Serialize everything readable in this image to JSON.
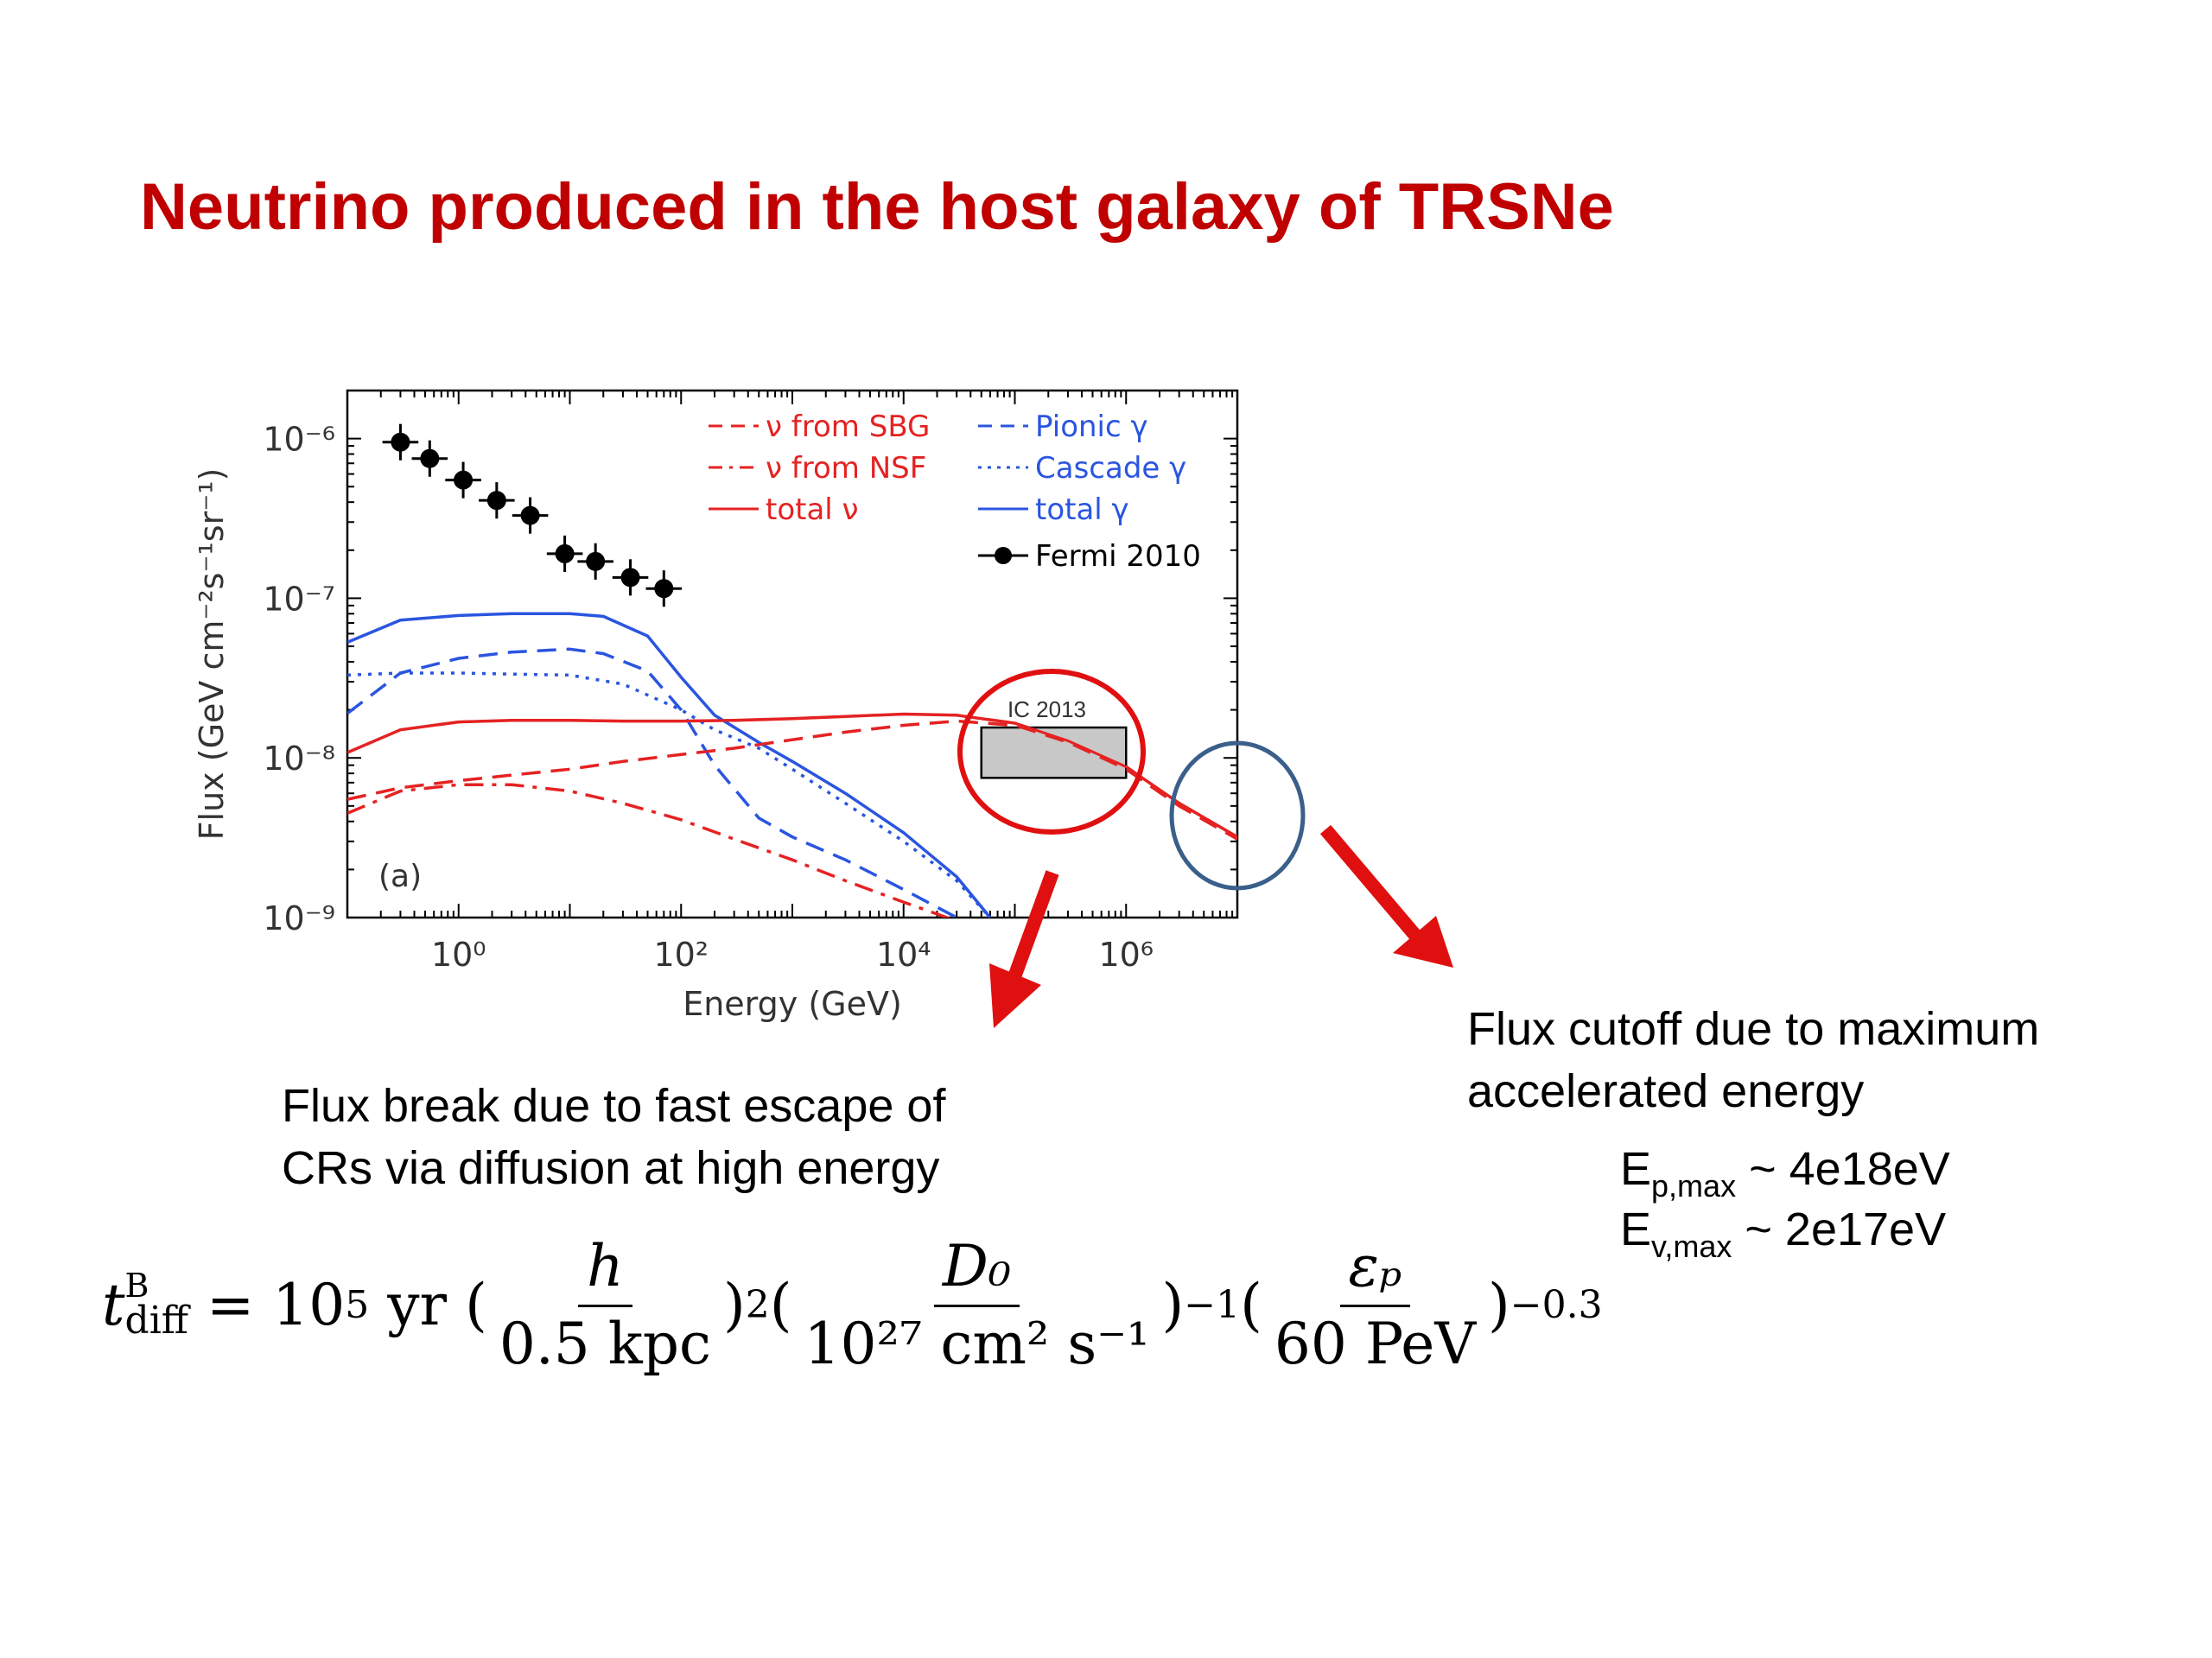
{
  "slide": {
    "title": "Neutrino produced in the host galaxy of TRSNe",
    "annotation_left_line1": "Flux break due to fast escape of",
    "annotation_left_line2": "CRs via diffusion at high energy",
    "annotation_right_line1": "Flux cutoff due to maximum",
    "annotation_right_line2": "accelerated energy",
    "ep_label": "E",
    "ep_sub": "p,max",
    "ep_value": " ~ 4e18eV",
    "ev_label": "E",
    "ev_sub": "v,max",
    "ev_value": " ~ 2e17eV",
    "formula": {
      "lhs_t": "t",
      "lhs_sup": "B",
      "lhs_sub": "diff",
      "equals": " = 10",
      "exp5": "5",
      "yr": " yr (",
      "f1_num": "h",
      "f1_den": "0.5 kpc",
      "close1": ")",
      "pow1": "2",
      "open2": "(",
      "f2_num": "D₀",
      "f2_den": "10²⁷ cm² s⁻¹",
      "close2": ")",
      "pow2": "−1",
      "open3": "(",
      "f3_num": "εₚ",
      "f3_den": "60 PeV",
      "close3": ")",
      "pow3": "−0.3"
    },
    "colors": {
      "title": "#c00000",
      "red": "#e52222",
      "blue": "#2a55e0",
      "circle_red": "#e01010",
      "circle_blue": "#3a5f8a",
      "arrow": "#e01010"
    }
  },
  "chart_data": {
    "type": "line",
    "xlabel": "Energy (GeV)",
    "ylabel": "Flux (GeV cm⁻²s⁻¹sr⁻¹)",
    "xscale": "log",
    "yscale": "log",
    "xlim": [
      0.1,
      10000000
    ],
    "ylim": [
      1e-09,
      2e-06
    ],
    "x_tick_labels": [
      "10⁰",
      "10²",
      "10⁴",
      "10⁶"
    ],
    "x_tick_values": [
      1,
      100,
      10000,
      1000000
    ],
    "y_tick_labels": [
      "10⁻⁹",
      "10⁻⁸",
      "10⁻⁷",
      "10⁻⁶"
    ],
    "y_tick_values": [
      1e-09,
      1e-08,
      1e-07,
      1e-06
    ],
    "panel_label": "(a)",
    "legend_placement": "top-right",
    "series": [
      {
        "name": "ν from SBG",
        "color": "#e52222",
        "dash": "dash",
        "x": [
          0.1,
          0.3,
          1,
          3,
          10,
          30,
          100,
          300,
          1000,
          3000,
          10000,
          30000,
          100000,
          300000,
          1000000,
          3000000,
          10000000
        ],
        "y": [
          5.5e-09,
          6.5e-09,
          7.2e-09,
          7.8e-09,
          8.5e-09,
          9.5e-09,
          1.05e-08,
          1.15e-08,
          1.3e-08,
          1.45e-08,
          1.6e-08,
          1.7e-08,
          1.6e-08,
          1.25e-08,
          8.5e-09,
          5e-09,
          3.1e-09
        ]
      },
      {
        "name": "ν from NSF",
        "color": "#e52222",
        "dash": "dashdot",
        "x": [
          0.1,
          0.3,
          1,
          3,
          10,
          30,
          100,
          300,
          1000,
          3000,
          10000,
          30000
        ],
        "y": [
          4.5e-09,
          6.2e-09,
          6.8e-09,
          6.8e-09,
          6.2e-09,
          5.2e-09,
          4.1e-09,
          3.1e-09,
          2.3e-09,
          1.7e-09,
          1.25e-09,
          9.5e-10
        ]
      },
      {
        "name": "total ν",
        "color": "#e52222",
        "dash": "solid",
        "x": [
          0.1,
          0.3,
          1,
          3,
          10,
          30,
          100,
          300,
          1000,
          3000,
          10000,
          30000,
          100000,
          300000,
          1000000,
          3000000,
          10000000
        ],
        "y": [
          1.08e-08,
          1.5e-08,
          1.68e-08,
          1.72e-08,
          1.72e-08,
          1.7e-08,
          1.7e-08,
          1.72e-08,
          1.76e-08,
          1.82e-08,
          1.88e-08,
          1.85e-08,
          1.65e-08,
          1.28e-08,
          8.8e-09,
          5.2e-09,
          3.2e-09
        ]
      },
      {
        "name": "Pionic γ",
        "color": "#2a55e0",
        "dash": "dash",
        "x": [
          0.1,
          0.3,
          1,
          3,
          10,
          20,
          50,
          100,
          200,
          500,
          1000,
          3000,
          10000,
          30000
        ],
        "y": [
          1.9e-08,
          3.4e-08,
          4.2e-08,
          4.6e-08,
          4.8e-08,
          4.5e-08,
          3.5e-08,
          2e-08,
          9e-09,
          4.2e-09,
          3.2e-09,
          2.3e-09,
          1.5e-09,
          1e-09
        ]
      },
      {
        "name": "Cascade γ",
        "color": "#2a55e0",
        "dash": "dot",
        "x": [
          0.1,
          0.3,
          1,
          3,
          10,
          30,
          100,
          200,
          500,
          1000,
          3000,
          10000,
          30000,
          60000
        ],
        "y": [
          3.3e-08,
          3.4e-08,
          3.4e-08,
          3.35e-08,
          3.3e-08,
          2.9e-08,
          2e-08,
          1.5e-08,
          1.15e-08,
          8.5e-09,
          5.2e-09,
          3e-09,
          1.7e-09,
          1e-09
        ]
      },
      {
        "name": "total γ",
        "color": "#2a55e0",
        "dash": "solid",
        "x": [
          0.1,
          0.3,
          1,
          3,
          10,
          20,
          50,
          100,
          200,
          500,
          1000,
          3000,
          10000,
          30000,
          60000
        ],
        "y": [
          5.3e-08,
          7.3e-08,
          7.8e-08,
          8e-08,
          8e-08,
          7.7e-08,
          5.8e-08,
          3.2e-08,
          1.85e-08,
          1.25e-08,
          9.5e-09,
          6e-09,
          3.4e-09,
          1.8e-09,
          1e-09
        ]
      },
      {
        "name": "Fermi 2010",
        "color": "#000000",
        "dash": "points",
        "x": [
          0.3,
          0.55,
          1.1,
          2.2,
          4.4,
          9,
          17,
          35,
          70
        ],
        "y": [
          9.5e-07,
          7.5e-07,
          5.5e-07,
          4.1e-07,
          3.3e-07,
          1.9e-07,
          1.7e-07,
          1.35e-07,
          1.15e-07
        ]
      }
    ],
    "annotations": [
      {
        "text": "IC 2013",
        "type": "box",
        "x_range": [
          50000,
          1000000
        ],
        "y_range": [
          7.5e-09,
          1.55e-08
        ]
      }
    ]
  }
}
